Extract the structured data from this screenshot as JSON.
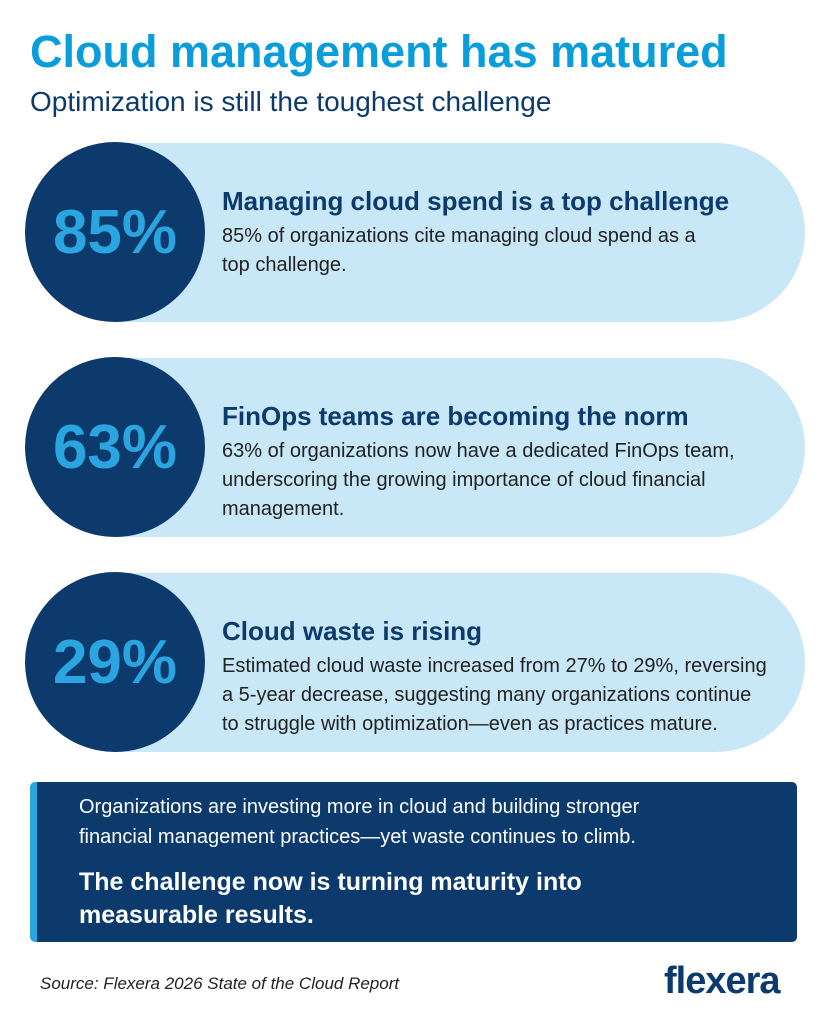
{
  "header": {
    "title": "Cloud management has matured",
    "subtitle": "Optimization is still the toughest challenge"
  },
  "cards": [
    {
      "stat": "85%",
      "heading": "Managing cloud spend is a top challenge",
      "body": [
        "85% of organizations cite managing cloud spend as a",
        "top challenge."
      ]
    },
    {
      "stat": "63%",
      "heading": "FinOps teams are becoming the norm",
      "body": [
        "63% of organizations now have a dedicated FinOps team,",
        "underscoring the growing importance of cloud financial",
        "management."
      ]
    },
    {
      "stat": "29%",
      "heading": "Cloud waste is rising",
      "body": [
        "Estimated cloud waste increased from 27% to 29%, reversing",
        "a 5-year decrease, suggesting many organizations continue",
        "to struggle with optimization—even as practices mature."
      ]
    }
  ],
  "summary": {
    "body": [
      "Organizations are investing more in cloud and building stronger",
      "financial management practices—yet waste continues to climb."
    ],
    "emphasis": [
      "The challenge now is turning maturity into",
      "measurable results."
    ]
  },
  "footer": {
    "source": "Source: Flexera 2026 State of the Cloud Report",
    "logo": "flexera"
  }
}
